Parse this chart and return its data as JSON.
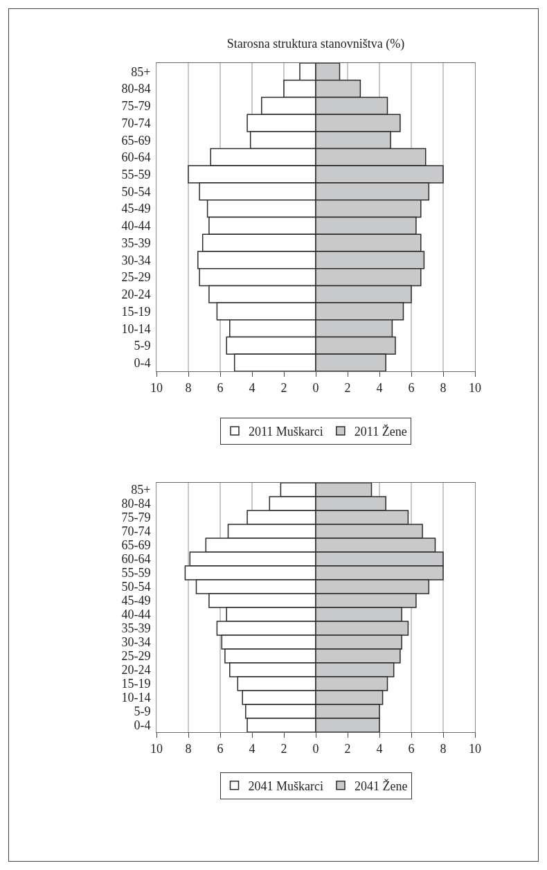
{
  "chart_data": [
    {
      "type": "bar",
      "orientation": "horizontal",
      "stacked": true,
      "title": "Starosna struktura stanovništva (%)",
      "categories": [
        "85+",
        "80-84",
        "75-79",
        "70-74",
        "65-69",
        "60-64",
        "55-59",
        "50-54",
        "45-49",
        "40-44",
        "35-39",
        "30-34",
        "25-29",
        "20-24",
        "15-19",
        "10-14",
        "5-9",
        "0-4"
      ],
      "series": [
        {
          "name": "2011 Muškarci",
          "color": "#ffffff",
          "values": [
            -1.0,
            -2.0,
            -3.4,
            -4.3,
            -4.1,
            -6.6,
            -8.0,
            -7.3,
            -6.8,
            -6.7,
            -7.1,
            -7.4,
            -7.3,
            -6.7,
            -6.2,
            -5.4,
            -5.6,
            -5.1
          ]
        },
        {
          "name": "2011 Žene",
          "color": "#c8c9ca",
          "values": [
            1.5,
            2.8,
            4.5,
            5.3,
            4.7,
            6.9,
            8.0,
            7.1,
            6.6,
            6.3,
            6.6,
            6.8,
            6.6,
            6.0,
            5.5,
            4.8,
            5.0,
            4.4
          ]
        }
      ],
      "xlim": [
        -10,
        10
      ],
      "xticks": [
        {
          "value": -10,
          "label": "10"
        },
        {
          "value": -8,
          "label": "8"
        },
        {
          "value": -6,
          "label": "6"
        },
        {
          "value": -4,
          "label": "4"
        },
        {
          "value": -2,
          "label": "2"
        },
        0,
        2,
        4,
        6,
        8,
        10
      ],
      "grid": "x",
      "legend": "bottom"
    },
    {
      "type": "bar",
      "orientation": "horizontal",
      "stacked": true,
      "categories": [
        "85+",
        "80-84",
        "75-79",
        "70-74",
        "65-69",
        "60-64",
        "55-59",
        "50-54",
        "45-49",
        "40-44",
        "35-39",
        "30-34",
        "25-29",
        "20-24",
        "15-19",
        "10-14",
        "5-9",
        "0-4"
      ],
      "series": [
        {
          "name": "2041 Muškarci",
          "color": "#ffffff",
          "values": [
            -2.2,
            -2.9,
            -4.3,
            -5.5,
            -6.9,
            -7.9,
            -8.2,
            -7.5,
            -6.7,
            -5.6,
            -6.2,
            -5.9,
            -5.7,
            -5.4,
            -4.9,
            -4.6,
            -4.4,
            -4.3
          ]
        },
        {
          "name": "2041 Žene",
          "color": "#c8c9ca",
          "values": [
            3.5,
            4.4,
            5.8,
            6.7,
            7.5,
            8.0,
            8.0,
            7.1,
            6.3,
            5.4,
            5.8,
            5.4,
            5.3,
            4.9,
            4.5,
            4.2,
            4.0,
            4.0
          ]
        }
      ],
      "xlim": [
        -10,
        10
      ],
      "xticks": [
        {
          "value": -10,
          "label": "10"
        },
        {
          "value": -8,
          "label": "8"
        },
        {
          "value": -6,
          "label": "6"
        },
        {
          "value": -4,
          "label": "4"
        },
        {
          "value": -2,
          "label": "2"
        },
        0,
        2,
        4,
        6,
        8,
        10
      ],
      "grid": "x",
      "legend": "bottom"
    }
  ]
}
